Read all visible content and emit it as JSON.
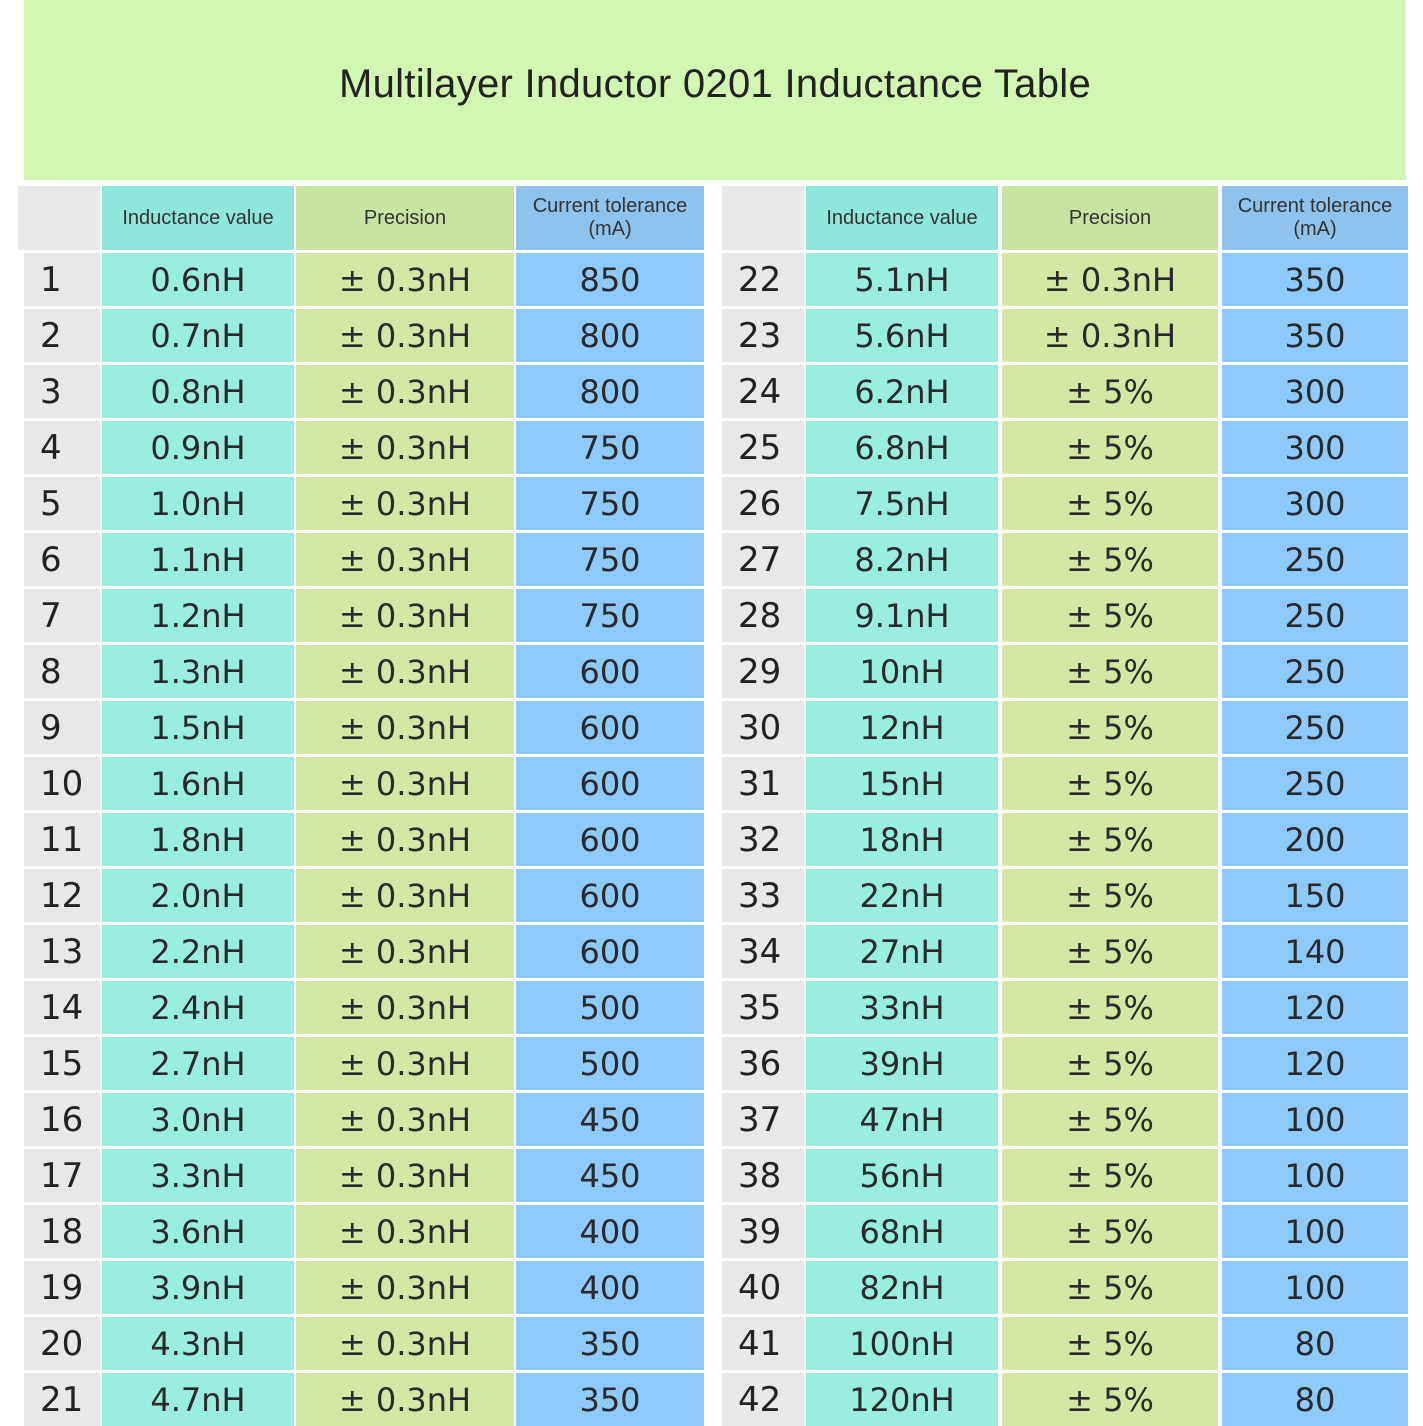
{
  "title": "Multilayer Inductor 0201 Inductance Table",
  "headers": {
    "index": "",
    "inductance": "Inductance value",
    "precision": "Precision",
    "current": "Current tolerance (mA)"
  },
  "colors": {
    "title_band": "#d2f7b2",
    "index_column": "#e8e8e8",
    "inductance_column": "#9aeee0",
    "precision_column": "#d4e8a6",
    "current_column": "#8fcaff"
  },
  "rows": [
    {
      "no": "1",
      "inductance": "0.6nH",
      "precision": "± 0.3nH",
      "current": "850"
    },
    {
      "no": "2",
      "inductance": "0.7nH",
      "precision": "± 0.3nH",
      "current": "800"
    },
    {
      "no": "3",
      "inductance": "0.8nH",
      "precision": "± 0.3nH",
      "current": "800"
    },
    {
      "no": "4",
      "inductance": "0.9nH",
      "precision": "± 0.3nH",
      "current": "750"
    },
    {
      "no": "5",
      "inductance": "1.0nH",
      "precision": "± 0.3nH",
      "current": "750"
    },
    {
      "no": "6",
      "inductance": "1.1nH",
      "precision": "± 0.3nH",
      "current": "750"
    },
    {
      "no": "7",
      "inductance": "1.2nH",
      "precision": "± 0.3nH",
      "current": "750"
    },
    {
      "no": "8",
      "inductance": "1.3nH",
      "precision": "± 0.3nH",
      "current": "600"
    },
    {
      "no": "9",
      "inductance": "1.5nH",
      "precision": "± 0.3nH",
      "current": "600"
    },
    {
      "no": "10",
      "inductance": "1.6nH",
      "precision": "± 0.3nH",
      "current": "600"
    },
    {
      "no": "11",
      "inductance": "1.8nH",
      "precision": "± 0.3nH",
      "current": "600"
    },
    {
      "no": "12",
      "inductance": "2.0nH",
      "precision": "± 0.3nH",
      "current": "600"
    },
    {
      "no": "13",
      "inductance": "2.2nH",
      "precision": "± 0.3nH",
      "current": "600"
    },
    {
      "no": "14",
      "inductance": "2.4nH",
      "precision": "± 0.3nH",
      "current": "500"
    },
    {
      "no": "15",
      "inductance": "2.7nH",
      "precision": "± 0.3nH",
      "current": "500"
    },
    {
      "no": "16",
      "inductance": "3.0nH",
      "precision": "± 0.3nH",
      "current": "450"
    },
    {
      "no": "17",
      "inductance": "3.3nH",
      "precision": "± 0.3nH",
      "current": "450"
    },
    {
      "no": "18",
      "inductance": "3.6nH",
      "precision": "± 0.3nH",
      "current": "400"
    },
    {
      "no": "19",
      "inductance": "3.9nH",
      "precision": "± 0.3nH",
      "current": "400"
    },
    {
      "no": "20",
      "inductance": "4.3nH",
      "precision": "± 0.3nH",
      "current": "350"
    },
    {
      "no": "21",
      "inductance": "4.7nH",
      "precision": "± 0.3nH",
      "current": "350"
    },
    {
      "no": "22",
      "inductance": "5.1nH",
      "precision": "± 0.3nH",
      "current": "350"
    },
    {
      "no": "23",
      "inductance": "5.6nH",
      "precision": "± 0.3nH",
      "current": "350"
    },
    {
      "no": "24",
      "inductance": "6.2nH",
      "precision": "± 5%",
      "current": "300"
    },
    {
      "no": "25",
      "inductance": "6.8nH",
      "precision": "± 5%",
      "current": "300"
    },
    {
      "no": "26",
      "inductance": "7.5nH",
      "precision": "± 5%",
      "current": "300"
    },
    {
      "no": "27",
      "inductance": "8.2nH",
      "precision": "± 5%",
      "current": "250"
    },
    {
      "no": "28",
      "inductance": "9.1nH",
      "precision": "± 5%",
      "current": "250"
    },
    {
      "no": "29",
      "inductance": "10nH",
      "precision": "± 5%",
      "current": "250"
    },
    {
      "no": "30",
      "inductance": "12nH",
      "precision": "± 5%",
      "current": "250"
    },
    {
      "no": "31",
      "inductance": "15nH",
      "precision": "± 5%",
      "current": "250"
    },
    {
      "no": "32",
      "inductance": "18nH",
      "precision": "± 5%",
      "current": "200"
    },
    {
      "no": "33",
      "inductance": "22nH",
      "precision": "± 5%",
      "current": "150"
    },
    {
      "no": "34",
      "inductance": "27nH",
      "precision": "± 5%",
      "current": "140"
    },
    {
      "no": "35",
      "inductance": "33nH",
      "precision": "± 5%",
      "current": "120"
    },
    {
      "no": "36",
      "inductance": "39nH",
      "precision": "± 5%",
      "current": "120"
    },
    {
      "no": "37",
      "inductance": "47nH",
      "precision": "± 5%",
      "current": "100"
    },
    {
      "no": "38",
      "inductance": "56nH",
      "precision": "± 5%",
      "current": "100"
    },
    {
      "no": "39",
      "inductance": "68nH",
      "precision": "± 5%",
      "current": "100"
    },
    {
      "no": "40",
      "inductance": "82nH",
      "precision": "± 5%",
      "current": "100"
    },
    {
      "no": "41",
      "inductance": "100nH",
      "precision": "± 5%",
      "current": "80"
    },
    {
      "no": "42",
      "inductance": "120nH",
      "precision": "± 5%",
      "current": "80"
    }
  ]
}
